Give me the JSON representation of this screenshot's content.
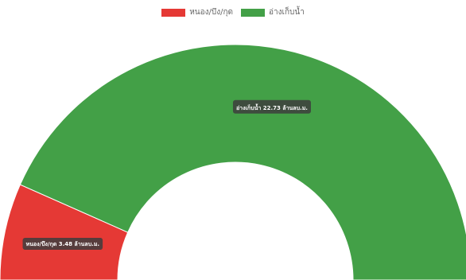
{
  "chart_data": {
    "type": "pie",
    "variant": "half-doughnut",
    "categories": [
      "หนอง/บึง/กุด",
      "อ่างเก็บน้ำ"
    ],
    "values": [
      3.48,
      22.73
    ],
    "unit": "ล้านลบ.ม.",
    "data_labels": [
      "หนอง/บึง/กุด 3.48 ล้านลบ.ม.",
      "อ่างเก็บน้ำ 22.73 ล้านลบ.ม."
    ],
    "colors": [
      "#e53935",
      "#43a047"
    ],
    "legend_position": "top-center"
  }
}
